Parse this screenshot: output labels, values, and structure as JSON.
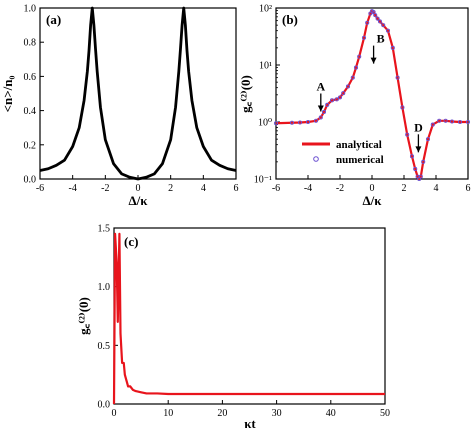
{
  "chart_data": [
    {
      "panel": "(a)",
      "type": "line",
      "title": "",
      "xlabel": "Δ/κ",
      "ylabel": "<n>/n₀",
      "xlim": [
        -6,
        6
      ],
      "ylim": [
        0,
        1
      ],
      "x_ticks": [
        "-6",
        "-4",
        "-2",
        "0",
        "2",
        "4",
        "6"
      ],
      "y_ticks": [
        "0.0",
        "0.2",
        "0.4",
        "0.6",
        "0.8",
        "1.0"
      ],
      "colors": {
        "line": "#000000"
      },
      "peaks": [
        -2.8,
        2.8
      ],
      "series": [
        {
          "x": [
            -6,
            -5.5,
            -5,
            -4.5,
            -4,
            -3.6,
            -3.3,
            -3.1,
            -3.0,
            -2.9,
            -2.8,
            -2.7,
            -2.6,
            -2.5,
            -2.3,
            -2.0,
            -1.5,
            -1.0,
            -0.5,
            0,
            0.5,
            1.0,
            1.5,
            2.0,
            2.3,
            2.5,
            2.6,
            2.7,
            2.8,
            2.9,
            3.0,
            3.1,
            3.3,
            3.6,
            4.0,
            4.5,
            5.0,
            5.5,
            6.0
          ],
          "values": [
            0.05,
            0.06,
            0.08,
            0.11,
            0.19,
            0.3,
            0.46,
            0.63,
            0.75,
            0.9,
            1.0,
            0.9,
            0.76,
            0.63,
            0.42,
            0.23,
            0.09,
            0.03,
            0.01,
            0.0,
            0.01,
            0.03,
            0.09,
            0.23,
            0.42,
            0.63,
            0.76,
            0.9,
            1.0,
            0.9,
            0.75,
            0.63,
            0.46,
            0.3,
            0.19,
            0.11,
            0.08,
            0.06,
            0.05
          ]
        }
      ]
    },
    {
      "panel": "(b)",
      "type": "line",
      "title": "",
      "xlabel": "Δ/κ",
      "ylabel": "g꜀⁽²⁾(0)",
      "xlim": [
        -6,
        6
      ],
      "ylim": [
        0.1,
        100
      ],
      "yscale": "log",
      "x_ticks": [
        "-6",
        "-4",
        "-2",
        "0",
        "2",
        "4",
        "6"
      ],
      "y_ticks": [
        "10⁻¹",
        "10⁰",
        "10¹",
        "10²"
      ],
      "y_tick_values": [
        0.1,
        1,
        10,
        100
      ],
      "legend": {
        "position": "bottom-left",
        "entries": [
          "analytical",
          "numerical"
        ]
      },
      "colors": {
        "analytical": "#e8141c",
        "numerical": "#6a4fd0"
      },
      "annotations": [
        {
          "text": "A",
          "x": -3.2,
          "y": 1.3
        },
        {
          "text": "B",
          "x": 0.1,
          "y": 9.0
        },
        {
          "text": "D",
          "x": 2.9,
          "y": 0.25
        }
      ],
      "series": [
        {
          "name": "analytical",
          "x": [
            -6,
            -5,
            -4.5,
            -4,
            -3.5,
            -3.2,
            -3.0,
            -2.8,
            -2.5,
            -2.2,
            -2.0,
            -1.8,
            -1.5,
            -1.2,
            -1.0,
            -0.8,
            -0.5,
            -0.3,
            -0.1,
            0,
            0.1,
            0.2,
            0.35,
            0.5,
            0.7,
            1.0,
            1.3,
            1.6,
            1.9,
            2.2,
            2.5,
            2.7,
            2.85,
            2.95,
            3.05,
            3.2,
            3.5,
            3.8,
            4.2,
            4.6,
            5.0,
            5.5,
            6.0
          ],
          "values": [
            0.95,
            0.97,
            0.98,
            1.0,
            1.05,
            1.2,
            1.5,
            2.0,
            2.4,
            2.5,
            2.7,
            3.2,
            4.2,
            6.0,
            9.0,
            14,
            30,
            55,
            80,
            88,
            85,
            75,
            65,
            58,
            50,
            40,
            20,
            6.0,
            1.8,
            0.6,
            0.25,
            0.15,
            0.11,
            0.1,
            0.11,
            0.2,
            0.5,
            0.9,
            1.05,
            1.05,
            1.02,
            1.0,
            1.0
          ]
        },
        {
          "name": "numerical",
          "x": [
            -6,
            -5,
            -4.5,
            -4,
            -3.5,
            -3.2,
            -3.0,
            -2.8,
            -2.5,
            -2.2,
            -2.0,
            -1.8,
            -1.5,
            -1.2,
            -1.0,
            -0.8,
            -0.5,
            -0.3,
            -0.1,
            0,
            0.1,
            0.2,
            0.35,
            0.5,
            0.7,
            1.0,
            1.3,
            1.6,
            1.9,
            2.2,
            2.5,
            2.7,
            2.85,
            2.95,
            3.05,
            3.2,
            3.5,
            3.8,
            4.2,
            4.6,
            5.0,
            5.5,
            6.0
          ],
          "values": [
            0.95,
            0.97,
            0.98,
            1.0,
            1.05,
            1.2,
            1.5,
            2.0,
            2.4,
            2.5,
            2.7,
            3.2,
            4.2,
            6.0,
            9.0,
            14,
            30,
            55,
            80,
            88,
            85,
            75,
            65,
            58,
            50,
            40,
            20,
            6.0,
            1.8,
            0.6,
            0.25,
            0.15,
            0.11,
            0.1,
            0.11,
            0.2,
            0.5,
            0.9,
            1.05,
            1.05,
            1.02,
            1.0,
            1.0
          ]
        }
      ]
    },
    {
      "panel": "(c)",
      "type": "line",
      "title": "",
      "xlabel": "κt",
      "ylabel": "g꜀⁽²⁾(0)",
      "xlim": [
        0,
        50
      ],
      "ylim": [
        0,
        1.5
      ],
      "x_ticks": [
        "0",
        "10",
        "20",
        "30",
        "40",
        "50"
      ],
      "y_ticks": [
        "0.0",
        "0.5",
        "1.0",
        "1.5"
      ],
      "colors": {
        "line": "#e8141c"
      },
      "series": [
        {
          "x": [
            0,
            0.2,
            0.5,
            0.7,
            1.0,
            1.2,
            1.5,
            1.8,
            2.0,
            2.3,
            2.6,
            3.0,
            3.5,
            4.0,
            5.0,
            6.0,
            8.0,
            10,
            15,
            20,
            30,
            40,
            50
          ],
          "values": [
            0.0,
            1.45,
            1.2,
            0.7,
            1.45,
            0.6,
            0.35,
            0.35,
            0.25,
            0.2,
            0.15,
            0.15,
            0.12,
            0.11,
            0.1,
            0.09,
            0.09,
            0.085,
            0.085,
            0.085,
            0.085,
            0.085,
            0.085
          ]
        }
      ]
    }
  ]
}
